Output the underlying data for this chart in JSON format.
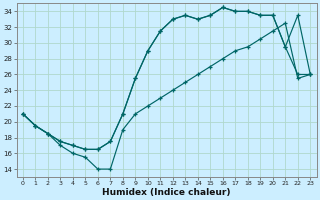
{
  "xlabel": "Humidex (Indice chaleur)",
  "bg_color": "#cceeff",
  "grid_color": "#b0d8cc",
  "line_color": "#006666",
  "xlim": [
    -0.5,
    23.5
  ],
  "ylim": [
    13,
    35
  ],
  "yticks": [
    14,
    16,
    18,
    20,
    22,
    24,
    26,
    28,
    30,
    32,
    34
  ],
  "xticks": [
    0,
    1,
    2,
    3,
    4,
    5,
    6,
    7,
    8,
    9,
    10,
    11,
    12,
    13,
    14,
    15,
    16,
    17,
    18,
    19,
    20,
    21,
    22,
    23
  ],
  "line1_x": [
    0,
    1,
    2,
    3,
    4,
    5,
    6,
    7,
    8,
    9,
    10,
    11,
    12,
    13,
    14,
    15,
    16,
    17,
    18,
    19,
    20,
    21,
    22,
    23
  ],
  "line1_y": [
    21,
    19.5,
    18.5,
    17.5,
    17.0,
    16.5,
    16.5,
    17.5,
    21.0,
    25.5,
    29.0,
    31.5,
    33.0,
    33.5,
    33.0,
    33.5,
    34.5,
    34.0,
    34.0,
    33.5,
    33.5,
    29.5,
    33.5,
    26.0
  ],
  "line2_x": [
    0,
    1,
    2,
    3,
    4,
    5,
    6,
    7,
    8,
    9,
    10,
    11,
    12,
    13,
    14,
    15,
    16,
    17,
    18,
    19,
    20,
    21,
    22,
    23
  ],
  "line2_y": [
    21,
    19.5,
    18.5,
    17.5,
    17.0,
    16.5,
    16.5,
    17.5,
    21.0,
    25.5,
    29.0,
    31.5,
    33.0,
    33.5,
    33.0,
    33.5,
    34.5,
    34.0,
    34.0,
    33.5,
    33.5,
    29.5,
    26.0,
    26.0
  ],
  "line3_x": [
    0,
    1,
    2,
    3,
    4,
    5,
    6,
    7,
    8,
    9,
    10,
    11,
    12,
    13,
    14,
    15,
    16,
    17,
    18,
    19,
    20,
    21,
    22,
    23
  ],
  "line3_y": [
    21,
    19.5,
    18.5,
    17.0,
    16.0,
    15.5,
    14.0,
    14.0,
    19.0,
    21.0,
    22.0,
    23.0,
    24.0,
    25.0,
    26.0,
    27.0,
    28.0,
    29.0,
    29.5,
    30.5,
    31.5,
    32.5,
    25.5,
    26.0
  ]
}
